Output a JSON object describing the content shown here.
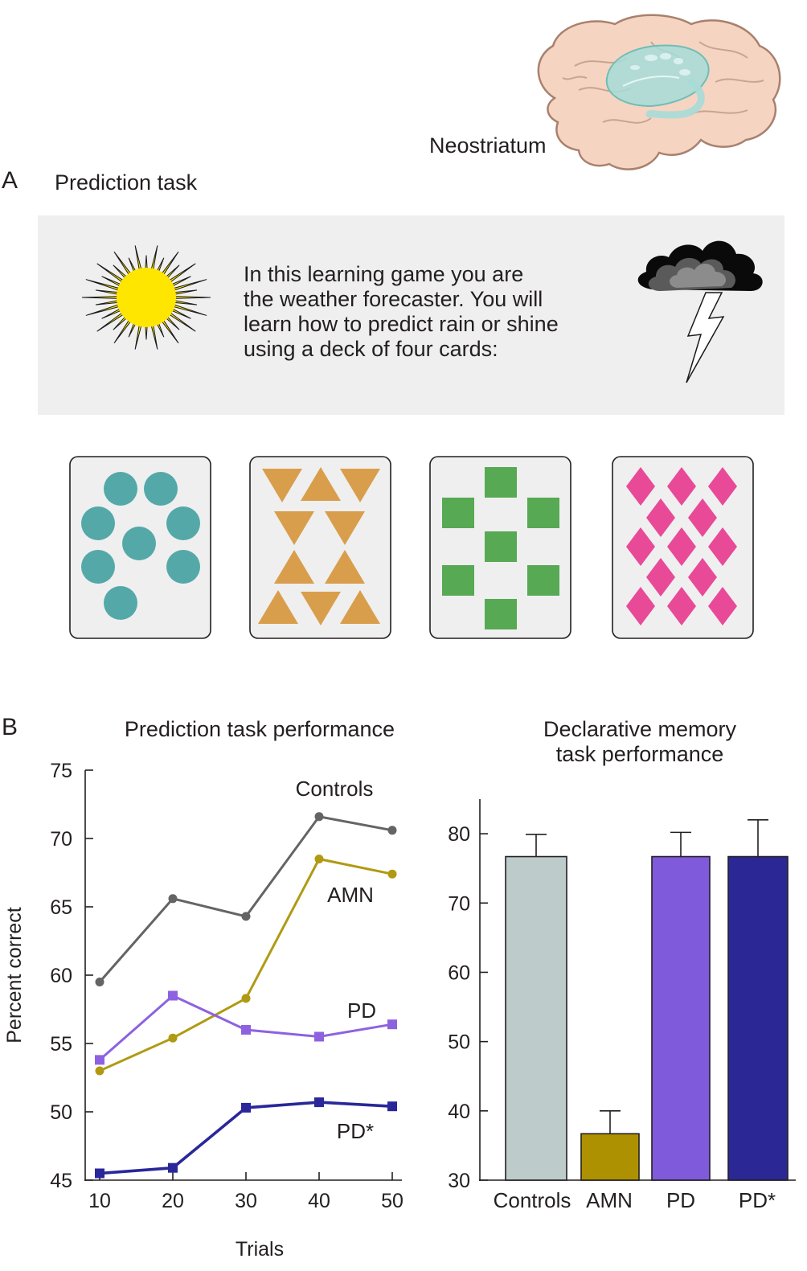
{
  "brain": {
    "label": "Neostriatum"
  },
  "panel_a": {
    "letter": "A",
    "title": "Prediction task",
    "instructions": "In this learning game you are\nthe weather forecaster.  You will\nlearn how to predict rain or shine\nusing a deck of four cards:",
    "sun_icon": "sun-icon",
    "storm_icon": "storm-cloud-icon",
    "cards": [
      {
        "shape": "circle",
        "count": 8,
        "color": "#55a8a8"
      },
      {
        "shape": "triangle",
        "count": 10,
        "color": "#d99e4b"
      },
      {
        "shape": "square",
        "count": 7,
        "color": "#57a954"
      },
      {
        "shape": "diamond",
        "count": 13,
        "color": "#e84a98"
      }
    ]
  },
  "panel_b": {
    "letter": "B"
  },
  "chart_data": [
    {
      "type": "line",
      "title": "Prediction task performance",
      "xlabel": "Trials",
      "ylabel": "Percent correct",
      "x": [
        10,
        20,
        30,
        40,
        50
      ],
      "xticks": [
        "10",
        "20",
        "30",
        "40",
        "50"
      ],
      "yticks": [
        "45",
        "50",
        "55",
        "60",
        "65",
        "70",
        "75"
      ],
      "ylim": [
        45,
        75
      ],
      "xlim": [
        10,
        50
      ],
      "series": [
        {
          "name": "Controls",
          "values": [
            59.5,
            65.6,
            64.3,
            71.6,
            70.6
          ],
          "color": "#646464",
          "marker": "circle"
        },
        {
          "name": "AMN",
          "values": [
            53.0,
            55.4,
            58.3,
            68.5,
            67.4
          ],
          "color": "#b09a12",
          "marker": "circle"
        },
        {
          "name": "PD",
          "values": [
            53.8,
            58.5,
            56.0,
            55.5,
            56.4
          ],
          "color": "#8d62e0",
          "marker": "square"
        },
        {
          "name": "PD*",
          "values": [
            45.5,
            45.9,
            50.3,
            50.7,
            50.4
          ],
          "color": "#29279a",
          "marker": "square"
        }
      ]
    },
    {
      "type": "bar",
      "title": "Declarative memory\ntask performance",
      "categories": [
        "Controls",
        "AMN",
        "PD",
        "PD*"
      ],
      "values": [
        76.7,
        36.7,
        76.7,
        76.7
      ],
      "errors": [
        3.2,
        3.3,
        3.5,
        5.3
      ],
      "colors": [
        "#bdcbca",
        "#ae9100",
        "#7f5adb",
        "#2b2895"
      ],
      "yticks": [
        "30",
        "40",
        "50",
        "60",
        "70",
        "80"
      ],
      "ylim": [
        30,
        85
      ]
    }
  ]
}
